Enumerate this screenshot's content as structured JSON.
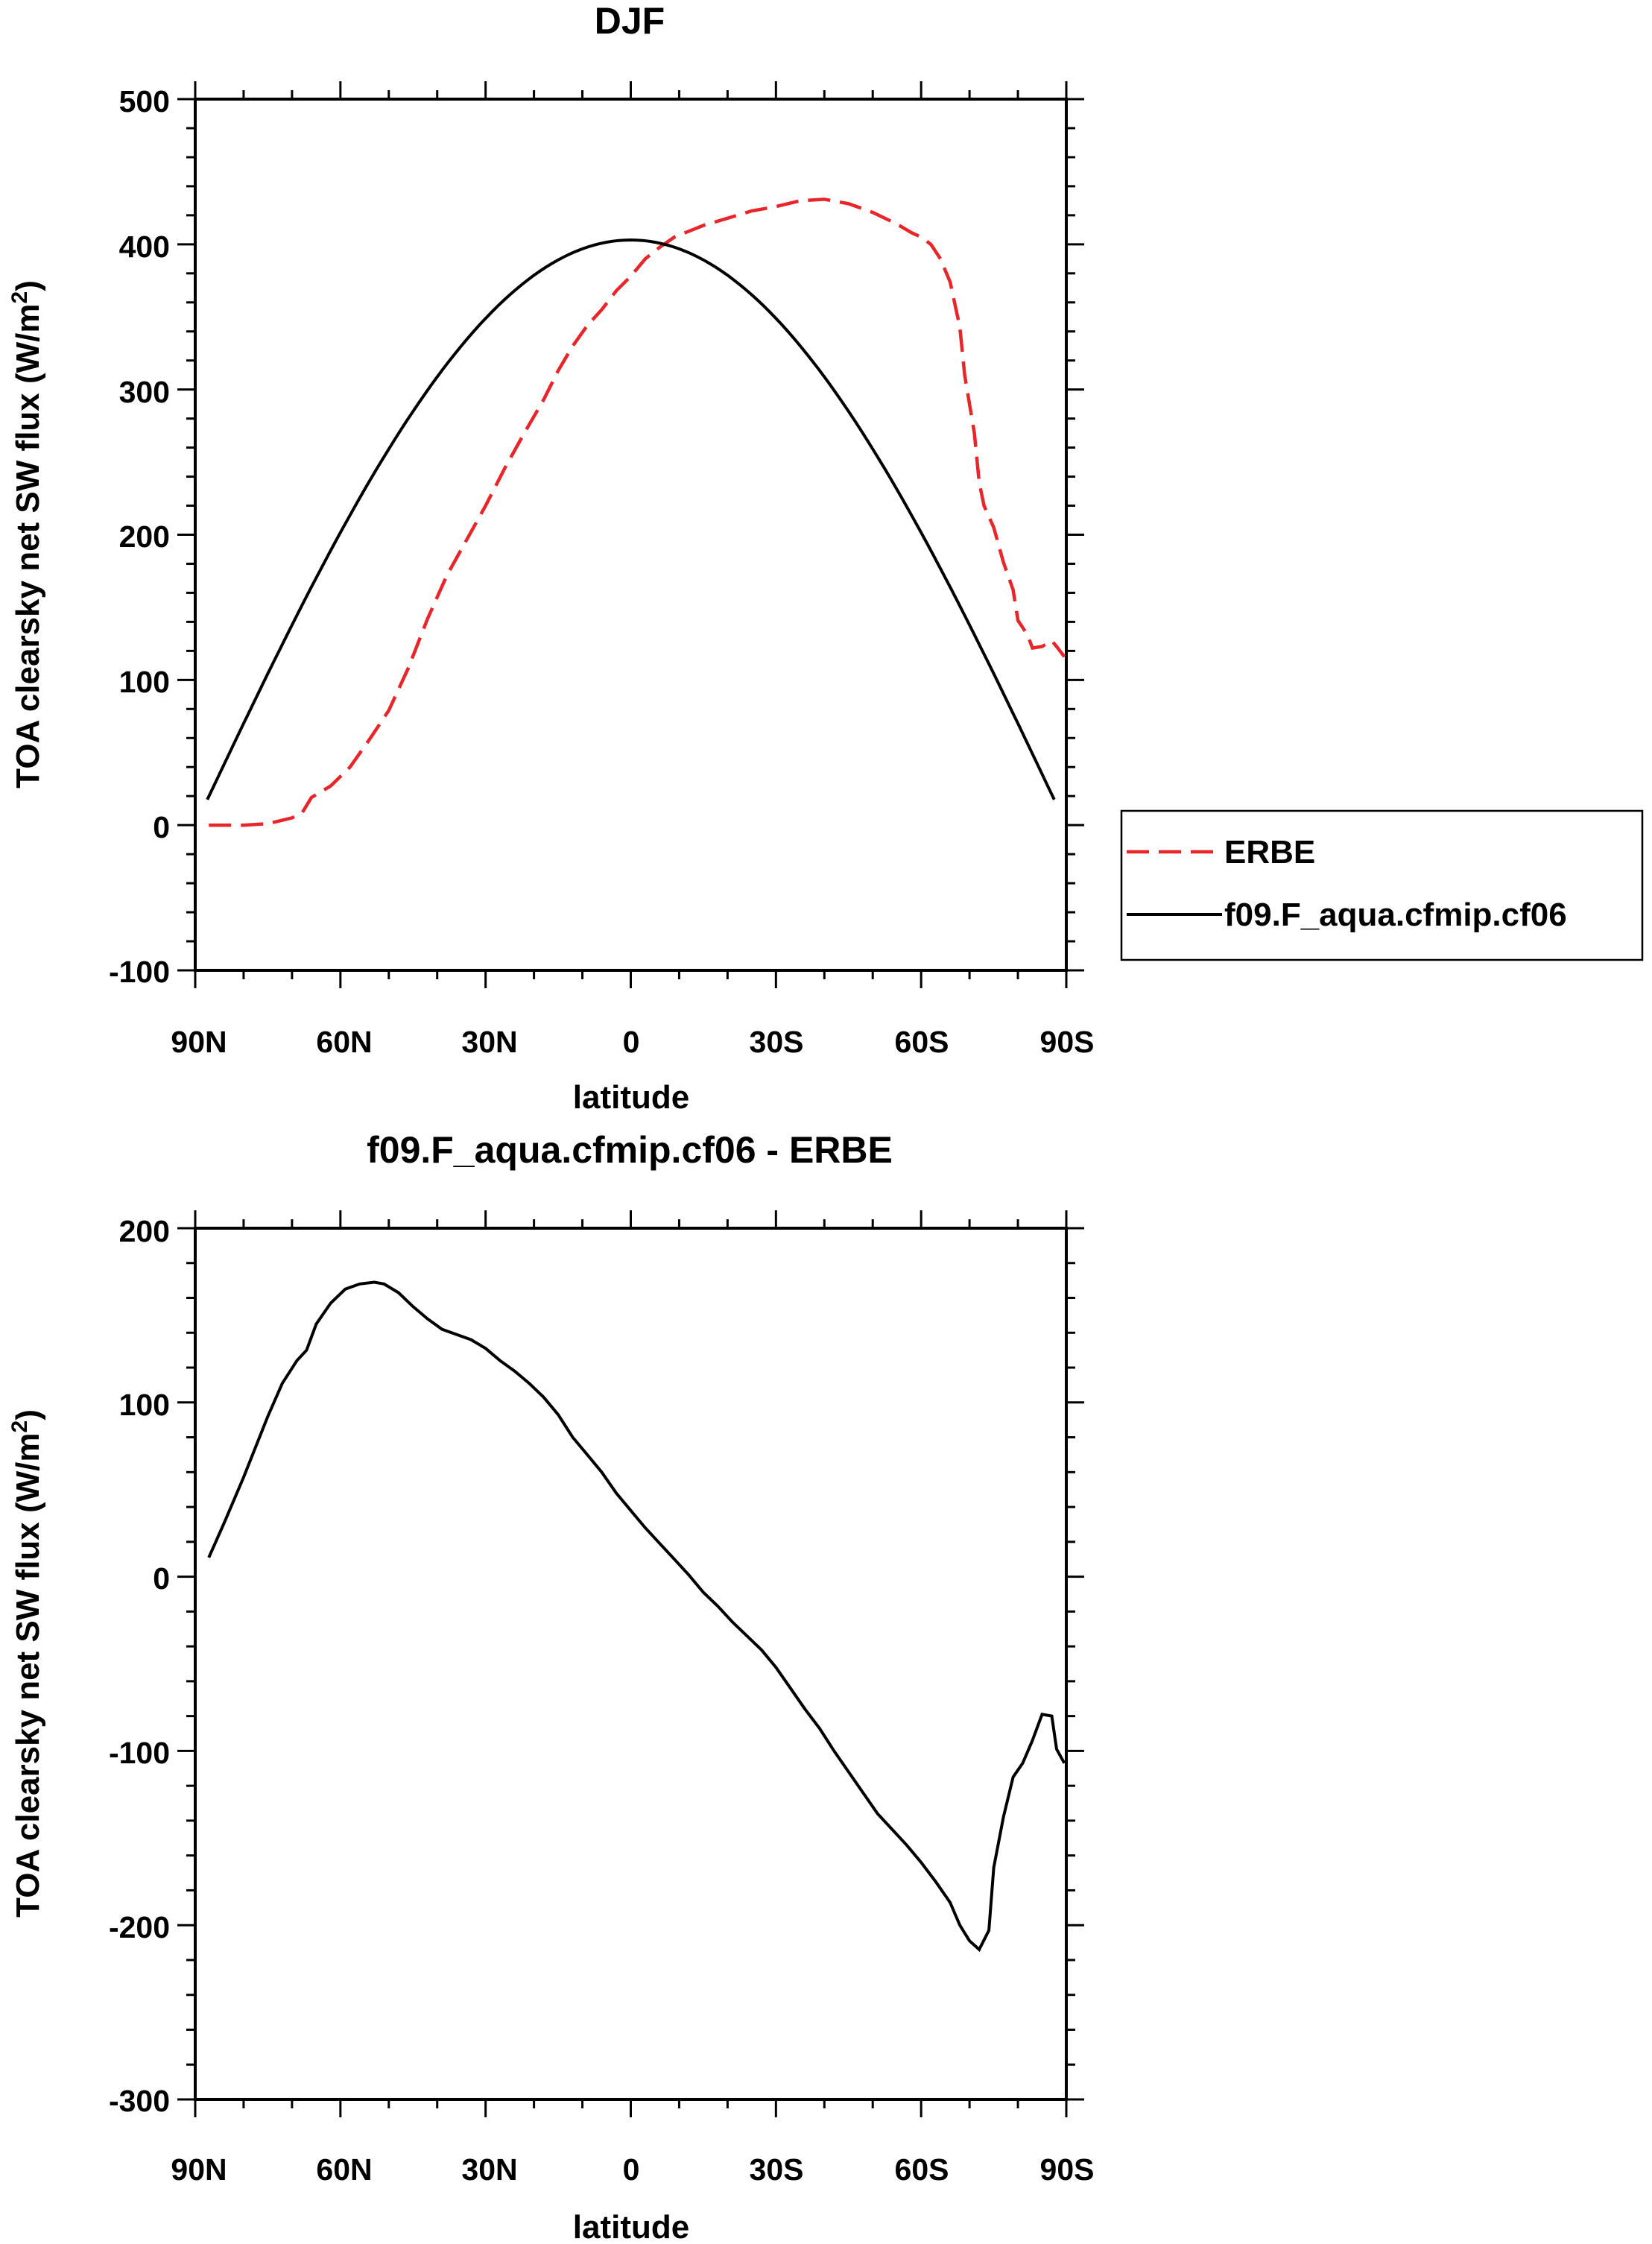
{
  "chart_data": [
    {
      "type": "line",
      "title": "DJF",
      "xlabel": "latitude",
      "ylabel": "TOA clearsky net SW flux (W/m",
      "ylabel_sup": "2",
      "ylabel_close": ")",
      "xlim": [
        90,
        -90
      ],
      "ylim": [
        -100,
        500
      ],
      "xticks": [
        {
          "value": 90,
          "label": "90N"
        },
        {
          "value": 60,
          "label": "60N"
        },
        {
          "value": 30,
          "label": "30N"
        },
        {
          "value": 0,
          "label": "0"
        },
        {
          "value": -30,
          "label": "30S"
        },
        {
          "value": -60,
          "label": "60S"
        },
        {
          "value": -90,
          "label": "90S"
        }
      ],
      "yticks": [
        {
          "value": 500,
          "label": "500"
        },
        {
          "value": 400,
          "label": "400"
        },
        {
          "value": 300,
          "label": "300"
        },
        {
          "value": 200,
          "label": "200"
        },
        {
          "value": 100,
          "label": "100"
        },
        {
          "value": 0,
          "label": "0"
        },
        {
          "value": -100,
          "label": "-100"
        }
      ],
      "series": [
        {
          "name": "ERBE",
          "color": "#e8262a",
          "dash": true,
          "points": [
            [
              87.2,
              0
            ],
            [
              80,
              0
            ],
            [
              75,
              1
            ],
            [
              70,
              5
            ],
            [
              68,
              8
            ],
            [
              66,
              19
            ],
            [
              62,
              27
            ],
            [
              58,
              40
            ],
            [
              54,
              59
            ],
            [
              50,
              79
            ],
            [
              46,
              108
            ],
            [
              42,
              142
            ],
            [
              38,
              172
            ],
            [
              34,
              196
            ],
            [
              30,
              220
            ],
            [
              26,
              246
            ],
            [
              22,
              270
            ],
            [
              18,
              293
            ],
            [
              15,
              313
            ],
            [
              12,
              330
            ],
            [
              9,
              344
            ],
            [
              6,
              355
            ],
            [
              3,
              368
            ],
            [
              0,
              378
            ],
            [
              -3,
              390
            ],
            [
              -6,
              398
            ],
            [
              -9,
              405
            ],
            [
              -12,
              409
            ],
            [
              -15,
              413
            ],
            [
              -20,
              418
            ],
            [
              -25,
              423
            ],
            [
              -30,
              426
            ],
            [
              -35,
              430
            ],
            [
              -40,
              431
            ],
            [
              -45,
              428
            ],
            [
              -50,
              422
            ],
            [
              -55,
              414
            ],
            [
              -58,
              408
            ],
            [
              -60,
              405
            ],
            [
              -62,
              400
            ],
            [
              -64,
              390
            ],
            [
              -66,
              374
            ],
            [
              -68,
              343
            ],
            [
              -69,
              310
            ],
            [
              -71,
              270
            ],
            [
              -72,
              236
            ],
            [
              -73,
              220
            ],
            [
              -75,
              205
            ],
            [
              -77,
              181
            ],
            [
              -79,
              162
            ],
            [
              -80,
              141
            ],
            [
              -82,
              131
            ],
            [
              -83,
              122
            ],
            [
              -85,
              123
            ],
            [
              -87,
              127
            ],
            [
              -88,
              123
            ],
            [
              -89.6,
              116
            ]
          ]
        },
        {
          "name": "f09.F_aqua.cfmip.cf06",
          "color": "#000000",
          "dash": false,
          "formula": "cosine",
          "peak": 403
        }
      ],
      "legend": {
        "position": "right",
        "entries": [
          "ERBE",
          "f09.F_aqua.cfmip.cf06"
        ]
      }
    },
    {
      "type": "line",
      "title": "f09.F_aqua.cfmip.cf06 - ERBE",
      "xlabel": "latitude",
      "ylabel": "TOA clearsky net SW flux (W/m",
      "ylabel_sup": "2",
      "ylabel_close": ")",
      "xlim": [
        90,
        -90
      ],
      "ylim": [
        -300,
        200
      ],
      "xticks": [
        {
          "value": 90,
          "label": "90N"
        },
        {
          "value": 60,
          "label": "60N"
        },
        {
          "value": 30,
          "label": "30N"
        },
        {
          "value": 0,
          "label": "0"
        },
        {
          "value": -30,
          "label": "30S"
        },
        {
          "value": -60,
          "label": "60S"
        },
        {
          "value": -90,
          "label": "90S"
        }
      ],
      "yticks": [
        {
          "value": 200,
          "label": "200"
        },
        {
          "value": 100,
          "label": "100"
        },
        {
          "value": 0,
          "label": "0"
        },
        {
          "value": -100,
          "label": "-100"
        },
        {
          "value": -200,
          "label": "-200"
        },
        {
          "value": -300,
          "label": "-300"
        }
      ],
      "series": [
        {
          "name": "f09.F_aqua.cfmip.cf06 - ERBE",
          "color": "#000000",
          "dash": false,
          "points": [
            [
              87.2,
              11
            ],
            [
              84,
              31
            ],
            [
              80,
              57
            ],
            [
              75,
              92
            ],
            [
              72,
              111
            ],
            [
              69,
              124
            ],
            [
              67,
              130
            ],
            [
              65,
              145
            ],
            [
              62,
              157
            ],
            [
              59,
              165
            ],
            [
              56,
              168
            ],
            [
              53,
              169
            ],
            [
              51,
              168
            ],
            [
              48,
              163
            ],
            [
              45,
              155
            ],
            [
              42,
              148
            ],
            [
              39,
              142
            ],
            [
              36,
              139
            ],
            [
              33,
              136
            ],
            [
              30,
              131
            ],
            [
              27,
              124
            ],
            [
              24,
              118
            ],
            [
              21,
              111
            ],
            [
              18,
              103
            ],
            [
              15,
              93
            ],
            [
              12,
              80
            ],
            [
              9,
              70
            ],
            [
              6,
              60
            ],
            [
              3,
              48
            ],
            [
              0,
              38
            ],
            [
              -3,
              28
            ],
            [
              -6,
              19
            ],
            [
              -9,
              10
            ],
            [
              -12,
              1
            ],
            [
              -15,
              -9
            ],
            [
              -18,
              -17
            ],
            [
              -21,
              -26
            ],
            [
              -24,
              -34
            ],
            [
              -27,
              -42
            ],
            [
              -30,
              -52
            ],
            [
              -33,
              -64
            ],
            [
              -36,
              -76
            ],
            [
              -39,
              -87
            ],
            [
              -42,
              -100
            ],
            [
              -45,
              -112
            ],
            [
              -48,
              -124
            ],
            [
              -51,
              -136
            ],
            [
              -54,
              -145
            ],
            [
              -57,
              -154
            ],
            [
              -60,
              -164
            ],
            [
              -63,
              -175
            ],
            [
              -66,
              -187
            ],
            [
              -68,
              -200
            ],
            [
              -70,
              -209
            ],
            [
              -72,
              -214
            ],
            [
              -74,
              -203
            ],
            [
              -75,
              -167
            ],
            [
              -77,
              -138
            ],
            [
              -79,
              -115
            ],
            [
              -81,
              -107
            ],
            [
              -83,
              -94
            ],
            [
              -85,
              -79
            ],
            [
              -87,
              -80
            ],
            [
              -88,
              -99
            ],
            [
              -89.6,
              -107
            ]
          ]
        }
      ]
    }
  ]
}
